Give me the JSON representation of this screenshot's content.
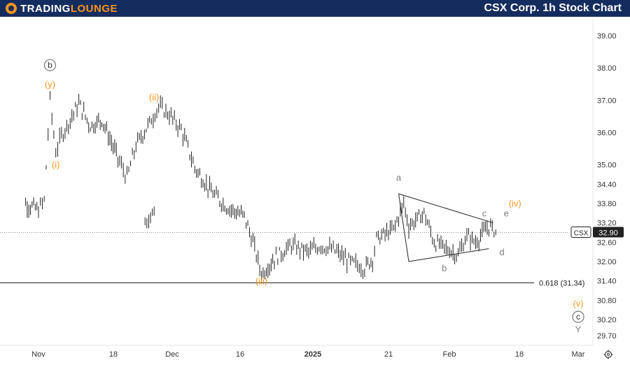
{
  "header": {
    "logo_word1": "TradingLounge",
    "title": "CSX Corp. 1h Stock Chart"
  },
  "icons": {
    "logo": "tradinglounge-logo-icon",
    "settings": "gear-icon"
  },
  "colors": {
    "header_bg": "#152c5e",
    "accent": "#f7941d",
    "bar": "#222222",
    "label_gray": "#7f7f7f",
    "price_badge": "#222222"
  },
  "chart_data": {
    "type": "ohlc",
    "ticker": "CSX",
    "last_price": "32.90",
    "ylim": [
      29.4,
      39.5
    ],
    "y_ticks": [
      "39.00",
      "38.00",
      "37.00",
      "36.00",
      "35.00",
      "34.40",
      "33.80",
      "33.20",
      "32.60",
      "32.00",
      "31.40",
      "30.80",
      "30.20",
      "29.70"
    ],
    "x_ticks": [
      "Nov",
      "18",
      "Dec",
      "16",
      "2025",
      "21",
      "Feb",
      "18",
      "Mar"
    ],
    "fib_level": {
      "label": "0.618 (31.34)",
      "value": 31.34
    },
    "price_path": [
      {
        "date": "Oct 28",
        "close": 33.2
      },
      {
        "date": "Oct 30",
        "close": 33.6
      },
      {
        "date": "Nov 1",
        "close": 33.8
      },
      {
        "date": "Nov 4",
        "close": 33.6
      },
      {
        "date": "Nov 5",
        "close": 33.9
      },
      {
        "date": "Nov 6",
        "close": 37.0
      },
      {
        "date": "Nov 7",
        "close": 35.4
      },
      {
        "date": "Nov 8",
        "close": 35.9
      },
      {
        "date": "Nov 11",
        "close": 36.9
      },
      {
        "date": "Nov 13",
        "close": 36.2
      },
      {
        "date": "Nov 15",
        "close": 36.4
      },
      {
        "date": "Nov 18",
        "close": 35.2
      },
      {
        "date": "Nov 20",
        "close": 34.6
      },
      {
        "date": "Nov 22",
        "close": 35.6
      },
      {
        "date": "Nov 25",
        "close": 36.3
      },
      {
        "date": "Nov 27",
        "close": 36.8
      },
      {
        "date": "Nov 29",
        "close": 36.6
      },
      {
        "date": "Dec 2",
        "close": 36.1
      },
      {
        "date": "Dec 5",
        "close": 34.9
      },
      {
        "date": "Dec 9",
        "close": 34.1
      },
      {
        "date": "Dec 12",
        "close": 33.7
      },
      {
        "date": "Dec 16",
        "close": 33.4
      },
      {
        "date": "Dec 18",
        "close": 32.6
      },
      {
        "date": "Dec 20",
        "close": 31.6
      },
      {
        "date": "Dec 23",
        "close": 32.1
      },
      {
        "date": "Dec 27",
        "close": 32.5
      },
      {
        "date": "Dec 31",
        "close": 32.3
      },
      {
        "date": "Jan 3",
        "close": 32.5
      },
      {
        "date": "Jan 7",
        "close": 32.3
      },
      {
        "date": "Jan 10",
        "close": 32.0
      },
      {
        "date": "Jan 14",
        "close": 31.8
      },
      {
        "date": "Jan 16",
        "close": 32.1
      },
      {
        "date": "Jan 17",
        "close": 32.7
      },
      {
        "date": "Jan 21",
        "close": 33.0
      },
      {
        "date": "Jan 23",
        "close": 33.8
      },
      {
        "date": "Jan 24",
        "close": 33.1
      },
      {
        "date": "Jan 27",
        "close": 33.5
      },
      {
        "date": "Jan 29",
        "close": 32.6
      },
      {
        "date": "Feb 3",
        "close": 32.2
      },
      {
        "date": "Feb 5",
        "close": 32.8
      },
      {
        "date": "Feb 7",
        "close": 32.6
      },
      {
        "date": "Feb 10",
        "close": 33.1
      },
      {
        "date": "Feb 12",
        "close": 32.9
      }
    ],
    "triangle": {
      "upper": [
        {
          "date": "Jan 22",
          "value": 34.1
        },
        {
          "date": "Feb 11",
          "value": 33.2
        }
      ],
      "lower": [
        {
          "date": "Jan 24",
          "value": 32.0
        },
        {
          "date": "Feb 10",
          "value": 32.4
        }
      ]
    },
    "wave_labels": [
      {
        "text": "(y)",
        "color": "orange",
        "date": "Nov 6",
        "value": 37.4
      },
      {
        "text": "b",
        "color": "circle",
        "date": "Nov 6",
        "value": 38.0
      },
      {
        "text": "(i)",
        "color": "orange",
        "date": "Nov 7",
        "value": 34.9
      },
      {
        "text": "(ii)",
        "color": "orange",
        "date": "Nov 26",
        "value": 37.0
      },
      {
        "text": "(iii)",
        "color": "orange",
        "date": "Dec 20",
        "value": 31.3
      },
      {
        "text": "a",
        "color": "gray",
        "date": "Jan 22",
        "value": 34.5
      },
      {
        "text": "b",
        "color": "gray",
        "date": "Jan 31",
        "value": 31.7
      },
      {
        "text": "c",
        "color": "gray",
        "date": "Feb 9",
        "value": 33.4
      },
      {
        "text": "d",
        "color": "gray",
        "date": "Feb 13",
        "value": 32.2
      },
      {
        "text": "e",
        "color": "gray",
        "date": "Feb 14",
        "value": 33.4
      },
      {
        "text": "(iv)",
        "color": "orange",
        "date": "Feb 16",
        "value": 33.7
      },
      {
        "text": "(v)",
        "color": "orange",
        "date": "Mar 1",
        "value": 30.6
      },
      {
        "text": "c",
        "color": "circle",
        "date": "Mar 1",
        "value": 30.2
      },
      {
        "text": "Y",
        "color": "gray",
        "date": "Mar 1",
        "value": 29.8
      }
    ]
  }
}
